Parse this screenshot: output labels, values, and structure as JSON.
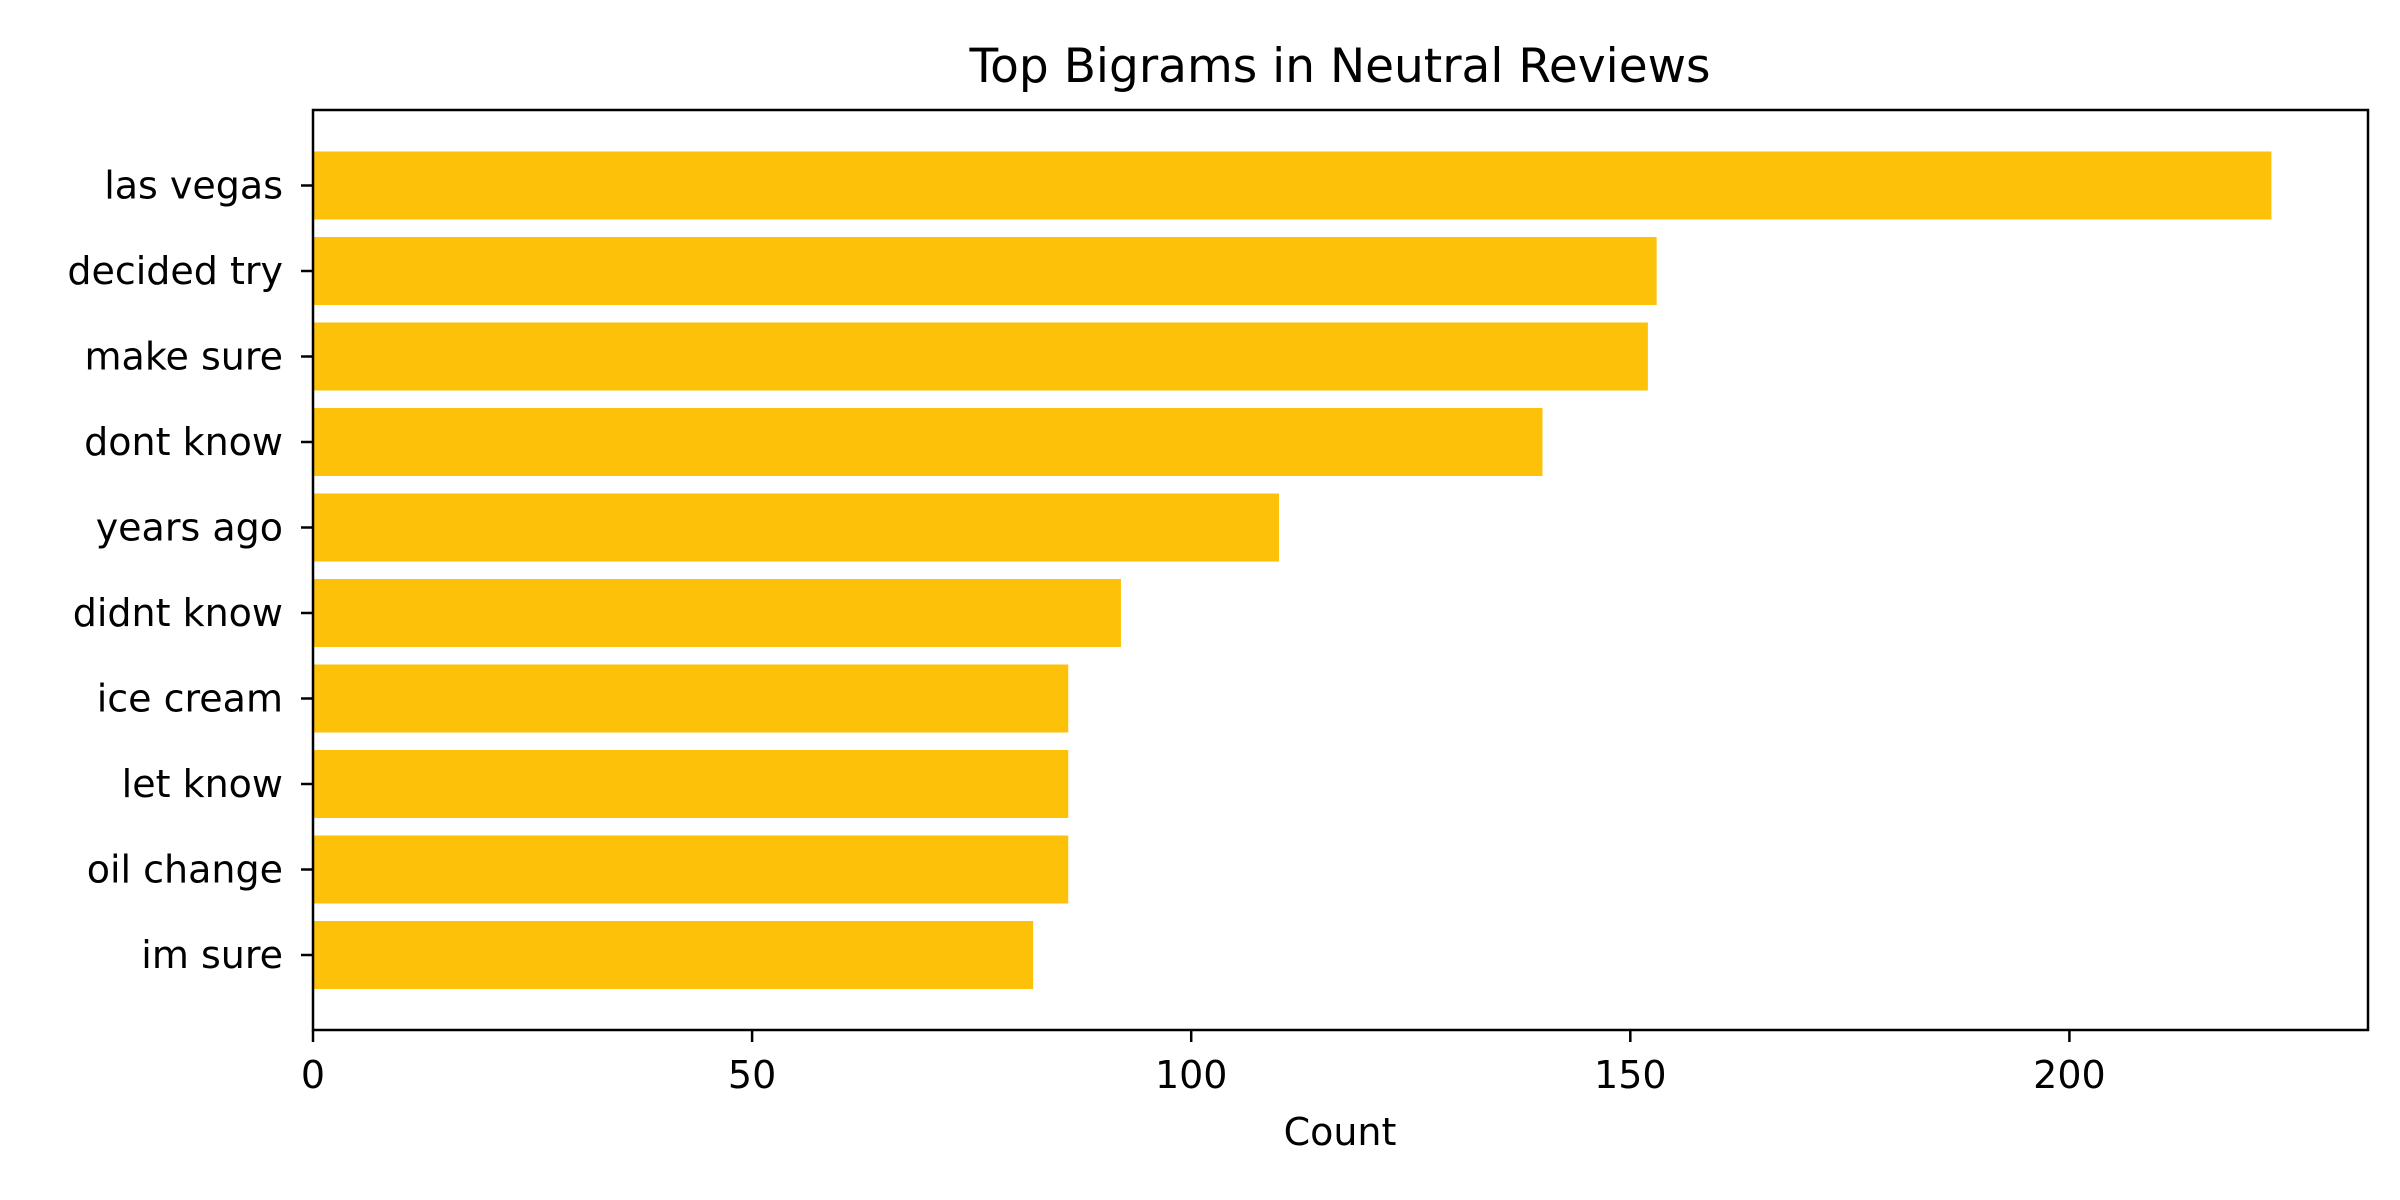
{
  "chart_data": {
    "type": "bar",
    "orientation": "horizontal",
    "title": "Top Bigrams in Neutral Reviews",
    "xlabel": "Count",
    "ylabel": "",
    "categories": [
      "las vegas",
      "decided try",
      "make sure",
      "dont know",
      "years ago",
      "didnt know",
      "ice cream",
      "let know",
      "oil change",
      "im sure"
    ],
    "values": [
      223,
      153,
      152,
      140,
      110,
      92,
      86,
      86,
      86,
      82
    ],
    "xlim": [
      0,
      234
    ],
    "xticks": [
      0,
      50,
      100,
      150,
      200
    ],
    "grid": false,
    "legend": "none",
    "bar_color": "#FDC10A"
  }
}
